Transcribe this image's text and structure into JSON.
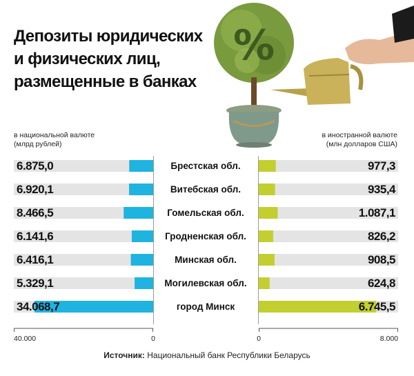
{
  "title_lines": [
    "Депозиты юридических",
    "и физических лиц,",
    "размещенные в банках"
  ],
  "left_unit": [
    "в национальной валюте",
    "(млрд рублей)"
  ],
  "right_unit": [
    "в иностранной валюте",
    "(млн долларов США)"
  ],
  "source": {
    "label": "Источник:",
    "text": "Национальный банк Республики Беларусь"
  },
  "colors": {
    "left_bar": "#1fb3e0",
    "right_bar": "#c2cf2e",
    "track": "#e4e4e4"
  },
  "icons": [
    "percent-tree-icon",
    "watering-can-icon",
    "hand-icon",
    "flower-pot-icon"
  ],
  "chart_data": {
    "type": "bar",
    "categories": [
      "Брестская обл.",
      "Витебская обл.",
      "Гомельская обл.",
      "Гродненская обл.",
      "Минская обл.",
      "Могилевская обл.",
      "город Минск"
    ],
    "series": [
      {
        "name": "в национальной валюте (млрд рублей)",
        "labels": [
          "6.875,0",
          "6.920,1",
          "8.466,5",
          "6.141,6",
          "6.416,1",
          "5.329,1",
          "34.068,7"
        ],
        "values": [
          6875.0,
          6920.1,
          8466.5,
          6141.6,
          6416.1,
          5329.1,
          34068.7
        ],
        "xlim": [
          0,
          40000
        ],
        "tick_labels": [
          "40.000",
          "0"
        ]
      },
      {
        "name": "в иностранной валюте (млн долларов США)",
        "labels": [
          "977,3",
          "935,4",
          "1.087,1",
          "826,2",
          "908,5",
          "624,8",
          "6.745,5"
        ],
        "values": [
          977.3,
          935.4,
          1087.1,
          826.2,
          908.5,
          624.8,
          6745.5
        ],
        "xlim": [
          0,
          8000
        ],
        "tick_labels": [
          "0",
          "8.000"
        ]
      }
    ]
  }
}
